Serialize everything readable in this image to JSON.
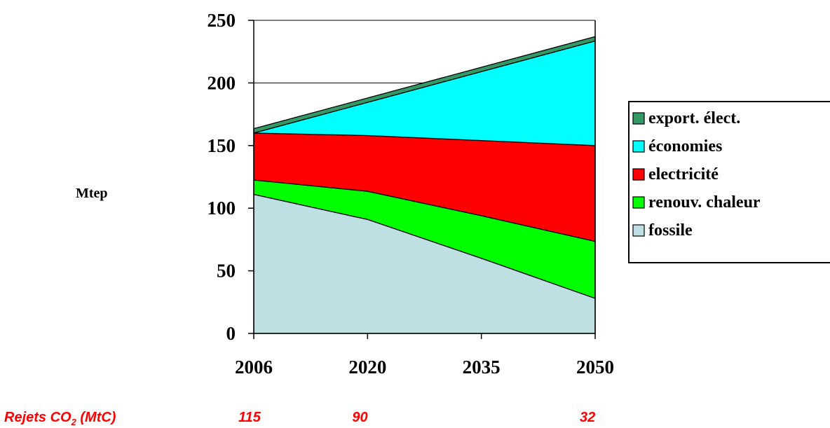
{
  "chart_data": {
    "type": "area",
    "stacked": true,
    "categories": [
      "2006",
      "2020",
      "2035",
      "2050"
    ],
    "ylabel": "Mtep",
    "ylim": [
      0,
      250
    ],
    "yticks": [
      "0",
      "50",
      "100",
      "150",
      "200",
      "250"
    ],
    "grid": "horizontal",
    "legend": "right",
    "series": [
      {
        "name": "fossile",
        "color": "#bfe0e3",
        "values": [
          111,
          91,
          60,
          28
        ]
      },
      {
        "name": "renouv. chaleur",
        "color": "#00ff00",
        "values": [
          11.5,
          22.5,
          34,
          45.5
        ]
      },
      {
        "name": "electricité",
        "color": "#ff0000",
        "values": [
          37.5,
          44.5,
          60,
          76.5
        ]
      },
      {
        "name": "économies",
        "color": "#00ffff",
        "values": [
          0,
          26.5,
          55,
          83.5
        ]
      },
      {
        "name": "export. élect.",
        "color": "#339966",
        "values": [
          3.5,
          3.5,
          3.5,
          3.5
        ]
      }
    ],
    "legend_order": [
      "export. élect.",
      "économies",
      "electricité",
      "renouv. chaleur",
      "fossile"
    ]
  },
  "co2_row": {
    "label_main": "Rejets CO",
    "label_sub": "2",
    "label_unit": " (MtC)",
    "values": [
      {
        "year": "2006",
        "value": "115"
      },
      {
        "year": "2020",
        "value": "90"
      },
      {
        "year": "2050",
        "value": "32"
      }
    ]
  }
}
